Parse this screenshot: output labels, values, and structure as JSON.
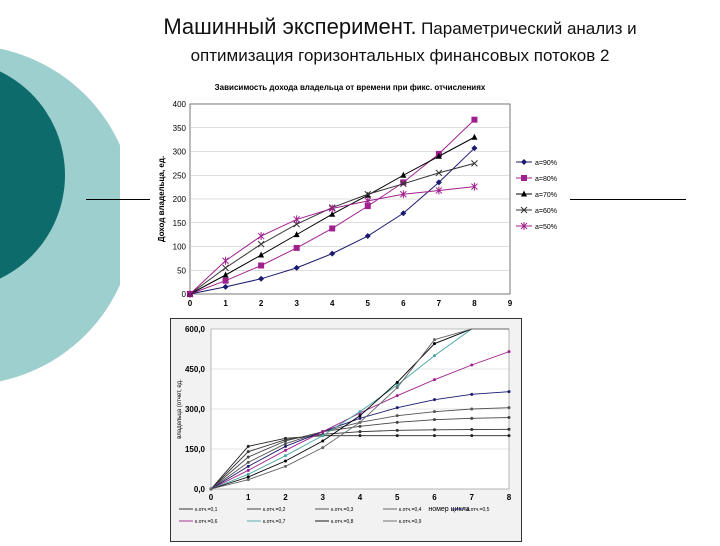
{
  "slide": {
    "title_main": "Машинный эксперимент.",
    "title_rest": "Параметрический анализ и",
    "title_line2": "оптимизация горизонтальных финансовых потоков 2"
  },
  "colors": {
    "teal_dark": "#0e6b6b",
    "teal_light": "#9dcfcf",
    "series_dark": "#1a1a6e",
    "series_purple": "#a0208e",
    "series_teal": "#4aa5a5"
  },
  "chart_data": [
    {
      "type": "line",
      "title": "Зависимость дохода владельца от времени при фикс. отчислениях",
      "ylabel": "Доход владельца, ед.",
      "xlabel": "",
      "xlim": [
        0,
        9
      ],
      "ylim": [
        0,
        400
      ],
      "x_ticks": [
        "0",
        "1",
        "2",
        "3",
        "4",
        "5",
        "6",
        "7",
        "8",
        "9"
      ],
      "y_ticks": [
        "0",
        "50",
        "100",
        "150",
        "200",
        "250",
        "300",
        "350",
        "400"
      ],
      "grid": "horizontal",
      "legend": "right",
      "x": [
        0,
        1,
        2,
        3,
        4,
        5,
        6,
        7,
        8
      ],
      "series": [
        {
          "name": "a=90%",
          "marker": "diamond",
          "values": [
            0,
            15,
            32,
            55,
            85,
            122,
            170,
            235,
            307
          ]
        },
        {
          "name": "a=80%",
          "marker": "square",
          "values": [
            0,
            28,
            60,
            97,
            138,
            185,
            235,
            295,
            367
          ]
        },
        {
          "name": "a=70%",
          "marker": "triangle",
          "values": [
            0,
            40,
            82,
            125,
            168,
            208,
            250,
            290,
            330
          ]
        },
        {
          "name": "a=60%",
          "marker": "x",
          "values": [
            0,
            55,
            105,
            147,
            182,
            210,
            232,
            255,
            275
          ]
        },
        {
          "name": "a=50%",
          "marker": "star",
          "values": [
            0,
            70,
            122,
            157,
            180,
            196,
            210,
            218,
            226
          ]
        }
      ]
    },
    {
      "type": "line",
      "title": "",
      "ylabel": "владельца (отчет, ед.",
      "xlabel": "номер цикла",
      "xlim": [
        0,
        8
      ],
      "ylim": [
        0,
        600
      ],
      "x_ticks": [
        "0",
        "1",
        "2",
        "3",
        "4",
        "5",
        "6",
        "7",
        "8"
      ],
      "y_ticks": [
        "0,0",
        "150,0",
        "300,0",
        "450,0",
        "600,0"
      ],
      "grid": "horizontal",
      "legend": "bottom",
      "x": [
        0,
        1,
        2,
        3,
        4,
        5,
        6,
        7,
        8
      ],
      "series": [
        {
          "name": "к.отч.=0,1",
          "values": [
            0,
            160,
            190,
            200,
            200,
            200,
            200,
            200,
            200
          ]
        },
        {
          "name": "к.отч.=0,2",
          "values": [
            0,
            140,
            185,
            205,
            215,
            220,
            222,
            223,
            224
          ]
        },
        {
          "name": "к.отч.=0,3",
          "values": [
            0,
            120,
            180,
            215,
            235,
            250,
            260,
            265,
            268
          ]
        },
        {
          "name": "к.отч.=0,4",
          "values": [
            0,
            100,
            170,
            215,
            250,
            275,
            290,
            300,
            305
          ]
        },
        {
          "name": "к.отч.=0,5",
          "values": [
            0,
            85,
            160,
            215,
            265,
            305,
            335,
            355,
            365
          ]
        },
        {
          "name": "к.отч.=0,6",
          "values": [
            0,
            70,
            145,
            215,
            285,
            350,
            410,
            465,
            515
          ]
        },
        {
          "name": "к.отч.=0,7",
          "values": [
            0,
            55,
            125,
            200,
            290,
            390,
            500,
            600,
            600
          ]
        },
        {
          "name": "к.отч.=0,8",
          "values": [
            0,
            45,
            105,
            180,
            275,
            400,
            545,
            600,
            600
          ]
        },
        {
          "name": "к.отч.=0,9",
          "values": [
            0,
            35,
            85,
            155,
            250,
            380,
            560,
            600,
            600
          ]
        }
      ]
    }
  ]
}
